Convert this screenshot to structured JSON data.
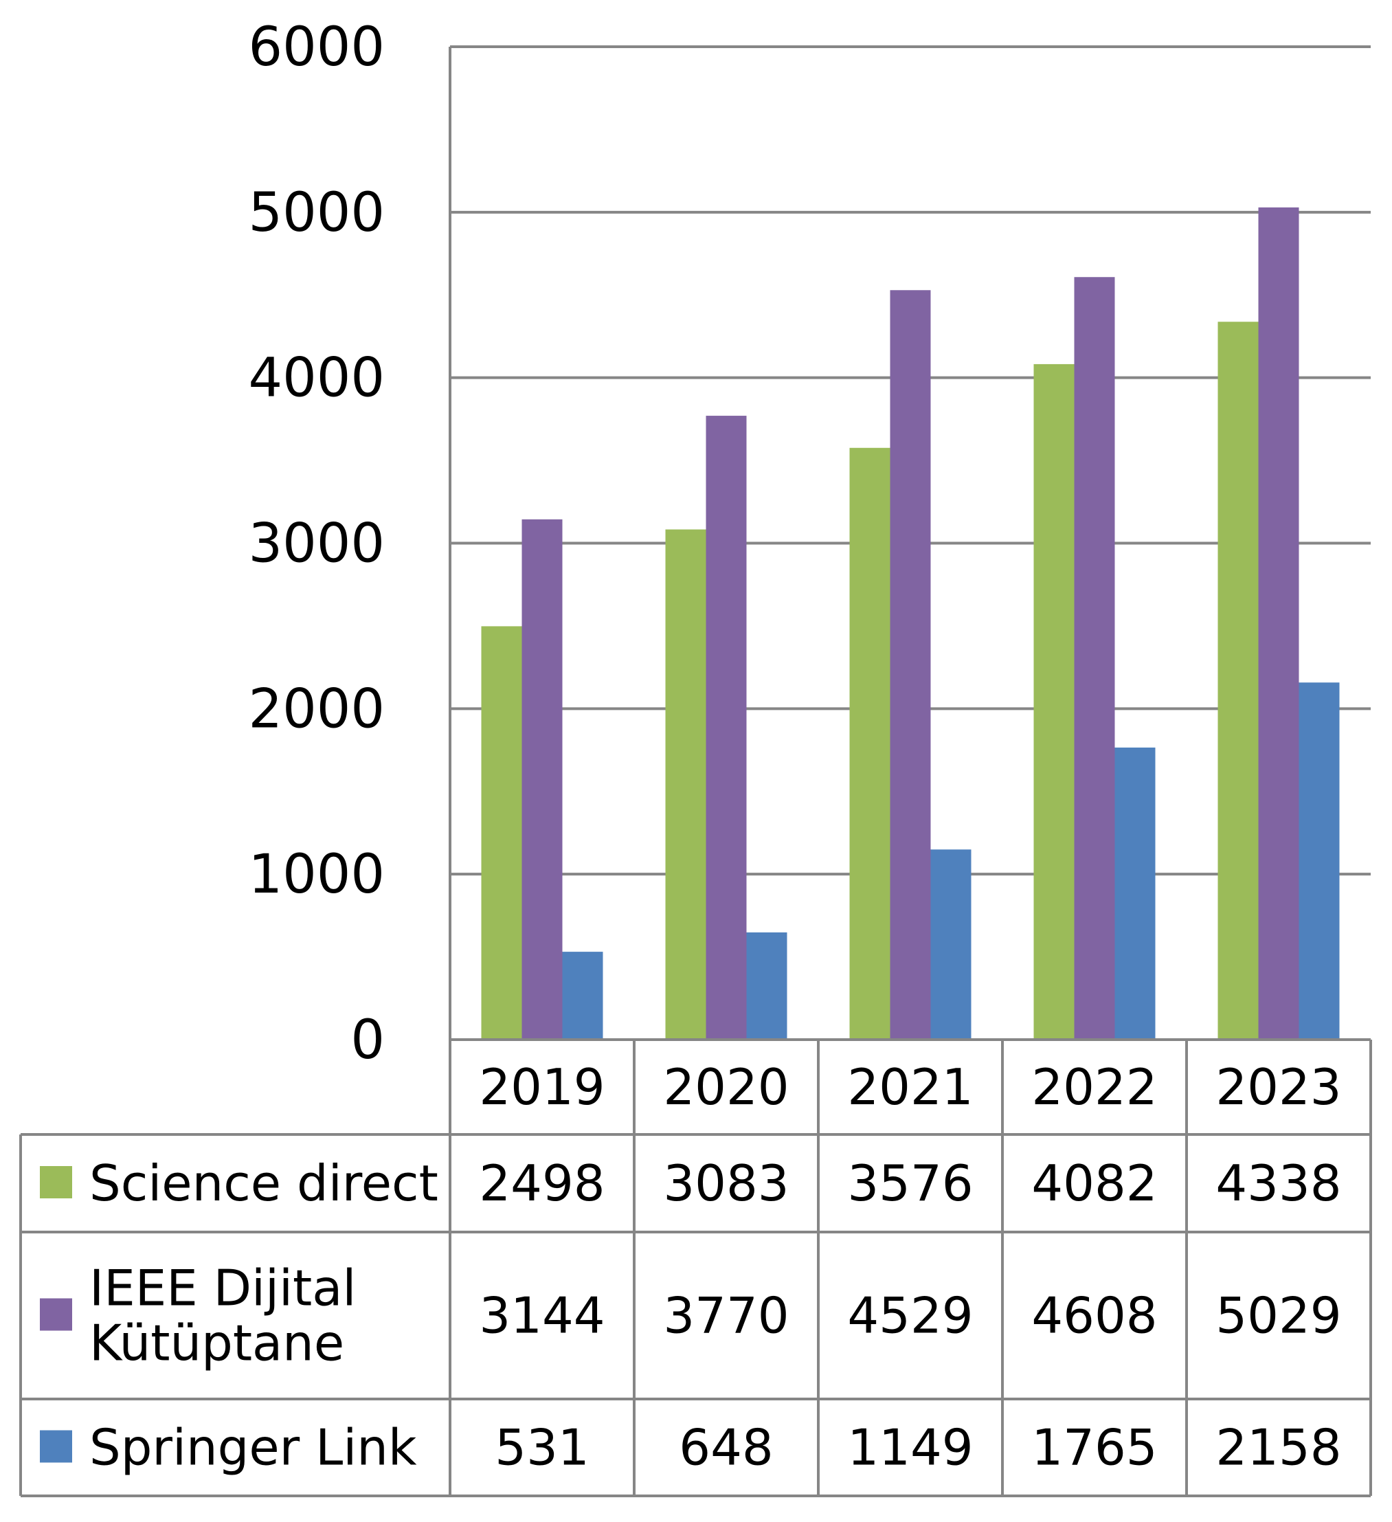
{
  "chart_data": {
    "type": "bar",
    "categories": [
      "2019",
      "2020",
      "2021",
      "2022",
      "2023"
    ],
    "series": [
      {
        "name": "Science direct",
        "values": [
          2498,
          3083,
          3576,
          4082,
          4338
        ],
        "color": "#9BBB59"
      },
      {
        "name": "IEEE Dijital Kütüptane",
        "name_lines": [
          "IEEE Dijital",
          "Kütüptane"
        ],
        "values": [
          3144,
          3770,
          4529,
          4608,
          5029
        ],
        "color": "#8064A2"
      },
      {
        "name": "Springer Link",
        "values": [
          531,
          648,
          1149,
          1765,
          2158
        ],
        "color": "#4F81BD"
      }
    ],
    "yticks": [
      "0",
      "1000",
      "2000",
      "3000",
      "4000",
      "5000",
      "6000"
    ],
    "ylim": [
      0,
      6000
    ],
    "grid": true,
    "legend": "data-table",
    "title": "",
    "xlabel": "",
    "ylabel": ""
  },
  "colors": {
    "gridline": "#868686",
    "border": "#868686"
  }
}
